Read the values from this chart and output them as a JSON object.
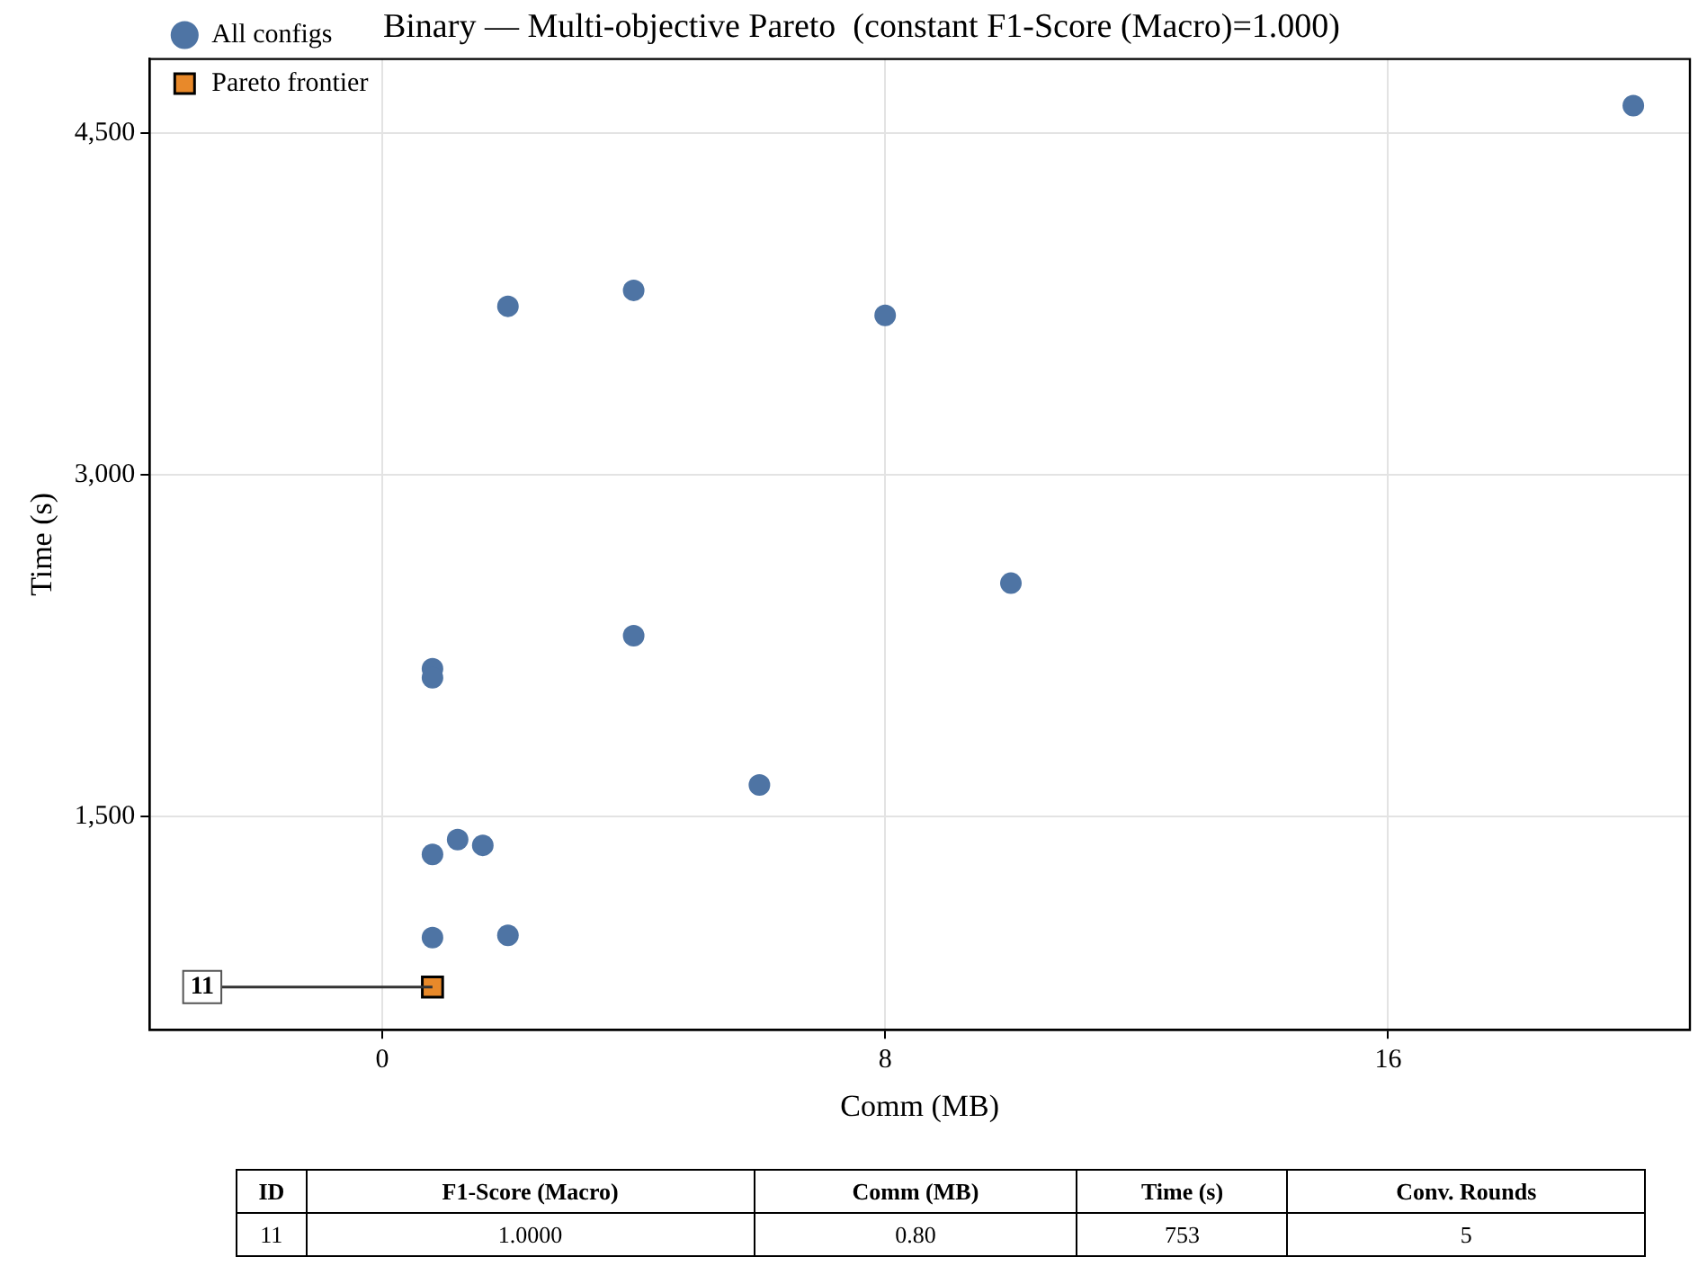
{
  "chart_data": {
    "type": "scatter",
    "title": "Binary — Multi-objective Pareto  (constant F1-Score (Macro)=1.000)",
    "xlabel": "Comm (MB)",
    "ylabel": "Time (s)",
    "xlim": [
      -3.7,
      20.8
    ],
    "xticks": [
      0,
      8,
      16
    ],
    "ylim": [
      566,
      4825
    ],
    "yticks": [
      {
        "value": 1500,
        "label": "1,500"
      },
      {
        "value": 3000,
        "label": "3,000"
      },
      {
        "value": 4500,
        "label": "4,500"
      }
    ],
    "grid": true,
    "legend": "top left",
    "series": [
      {
        "name": "All configs",
        "color": "#4e74a4",
        "marker": "circle",
        "x": [
          19.9,
          2.0,
          4.0,
          8.0,
          10.0,
          4.0,
          0.8,
          0.8,
          6.0,
          1.2,
          1.6,
          0.8,
          0.8,
          2.0
        ],
        "values": [
          4620,
          3740,
          3810,
          3700,
          2525,
          2295,
          2150,
          2110,
          1640,
          1400,
          1375,
          1335,
          970,
          980
        ]
      },
      {
        "name": "Pareto frontier",
        "color": "#e8892a",
        "marker": "square",
        "x": [
          0.8
        ],
        "values": [
          753
        ]
      }
    ],
    "annotations": [
      {
        "text": "11",
        "x": 0.8,
        "y": 753
      },
      "ID",
      "F1-Score (Macro)",
      "Comm (MB)",
      "Time (s)",
      "Conv. Rounds",
      "11",
      "1.0000",
      "0.80",
      "753",
      "5"
    ]
  }
}
